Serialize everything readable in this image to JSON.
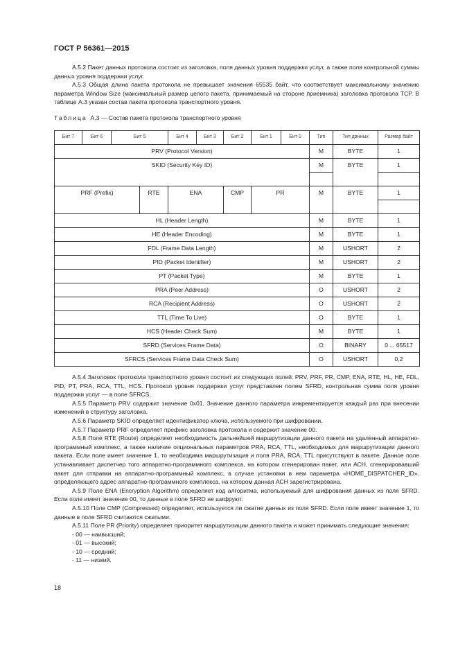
{
  "header": "ГОСТ Р 56361—2015",
  "intro": [
    "А.5.2  Пакет данных протокола состоит из заголовка, поля данных уровня поддержки услуг, а также поля контрольной суммы данных уровня поддержки услуг.",
    "А.5.3  Общая длина пакета протокола не превышает значения 65535 байт, что соответствует максимальному значению параметра Window Size (максимальный размер целого пакета, принимаемый на стороне приемника) заголовка протокола TCP. В таблице А.3 указан состав пакета протокола транспортного уровня."
  ],
  "caption": {
    "label": "Таблица",
    "text": "А.3 — Состав пакета протокола транспортного уровня"
  },
  "table": {
    "headers": [
      "Бит 7",
      "Бит 6",
      "Бит 5",
      "Бит 4",
      "Бит 3",
      "Бит 2",
      "Бит 1",
      "Бит 0",
      "Тип",
      "Тип данных",
      "Размер байт"
    ],
    "prv": [
      "PRV (Protocol Version)",
      "M",
      "BYTE",
      "1"
    ],
    "skid": [
      "SKID (Security Key ID)",
      "M",
      "BYTE",
      "1"
    ],
    "prf": [
      "PRF (Prefix)",
      "RTE",
      "ENA",
      "CMP",
      "PR",
      "M",
      "BYTE",
      "1"
    ],
    "rows": [
      [
        "HL (Header Length)",
        "M",
        "BYTE",
        "1"
      ],
      [
        "HE (Header Encoding)",
        "M",
        "BYTE",
        "1"
      ],
      [
        "FDL (Frame Data Length)",
        "M",
        "USHORT",
        "2"
      ],
      [
        "PID (Packet Identifier)",
        "M",
        "USHORT",
        "2"
      ],
      [
        "PT (Packet Type)",
        "M",
        "BYTE",
        "1"
      ],
      [
        "PRA (Peer Address)",
        "O",
        "USHORT",
        "2"
      ],
      [
        "RCA (Recipient Address)",
        "O",
        "USHORT",
        "2"
      ],
      [
        "TTL (Time To Live)",
        "O",
        "BYTE",
        "1"
      ],
      [
        "HCS (Header Check Sum)",
        "M",
        "BYTE",
        "1"
      ],
      [
        "SFRD (Services Frame Data)",
        "O",
        "BINARY",
        "0 ... 65517"
      ],
      [
        "SFRCS (Services Frame Data Check Sum)",
        "O",
        "USHORT",
        "0,2"
      ]
    ]
  },
  "body": [
    {
      "t": "А.5.4 Заголовок протокола транспортного уровня состоит из следующих полей: PRV, PRF, PR, CMP, ENA, RTE, HL, HE, FDL, PID, PT, PRA, RCA, TTL, HCS. Протокол уровня поддержки услуг представлен полем SFRD, контрольная сумма поля уровня поддержки услуг — в поле SFRCS.",
      "i": true
    },
    {
      "t": "А.5.5 Параметр PRV содержит значение 0x01. Значение данного параметра инкрементируется каждый раз при внесении изменений в структуру заголовка.",
      "i": true
    },
    {
      "t": "А.5.6 Параметр SKID определяет идентификатор ключа, используемого при шифровании.",
      "i": true
    },
    {
      "t": "А.5.7 Параметр PRF определяет префикс заголовка протокола и содержит значение 00.",
      "i": true
    },
    {
      "t": "А.5.8 Поле RTE (Route) определяет необходимость дальнейшей маршрутизации данного пакета на удаленный аппаратно-программный комплекс, а также наличие опциональных параметров PRA, RCA, TTL, необходимых для маршрутизации данного пакета. Если поле имеет значение 1, то необходима маршрутизация и поля PRA, RCA, TTL присутствуют в пакете. Данное поле устанавливает диспетчер того аппаратно-программного комплекса, на котором сгенерирован пакет, или АСН, сгенерировавший пакет для отправки на аппаратно-программный комплекс, в случае установки в нем параметра «HOME_DISPATCHER_ID», определяющего адрес аппаратно-программного комплекса, на котором данная АСН зарегистрирована.",
      "i": true
    },
    {
      "t": "А.5.9  Поле ENA (Encryption Algorithm) определяет код алгоритма, используемый для шифрования данных из поля SFRD. Если поле имеет значение 00, то данные в поле SFRD не шифруют.",
      "i": true
    },
    {
      "t": "А.5.10  Поле CMP (Compressed) определяет, используется ли сжатие данных из поля SFRD. Если поле имеет значение 1, то данные в поле SFRD считаются сжатыми.",
      "i": true
    },
    {
      "t": "А.5.11  Поле PR (Priority) определяет приоритет маршрутизации данного пакета и может принимать следующие значения:",
      "i": true
    },
    {
      "t": "- 00 — наивысший;",
      "i": true
    },
    {
      "t": "- 01 — высокий;",
      "i": true
    },
    {
      "t": "- 10 — средний;",
      "i": true
    },
    {
      "t": "- 11 — низкий.",
      "i": true
    }
  ],
  "page_number": "18"
}
